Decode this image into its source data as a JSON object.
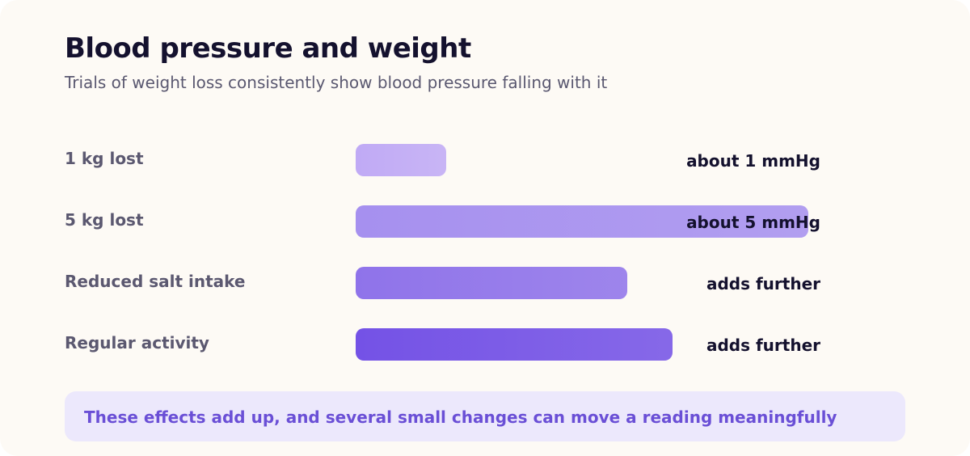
{
  "chart_data": {
    "type": "bar",
    "orientation": "horizontal",
    "title": "Blood pressure and weight",
    "subtitle": "Trials of weight loss consistently show blood pressure falling with it",
    "categories": [
      "1 kg lost",
      "5 kg lost",
      "Reduced salt intake",
      "Regular activity"
    ],
    "values": [
      1,
      5,
      3,
      3.5
    ],
    "value_labels": [
      "about 1 mmHg",
      "about 5 mmHg",
      "adds further",
      "adds further"
    ],
    "xlim": [
      0,
      5
    ],
    "grid": false,
    "bar_colors": [
      "#c0aaf5",
      "#a690ef",
      "#8f73ea",
      "#7452e6"
    ]
  },
  "note": {
    "text": "These effects add up, and several small changes can move a reading meaningfully"
  },
  "colors": {
    "background": "#fdfaf5",
    "note_background": "#ece8fc",
    "note_text": "#6a4fd6",
    "title": "#14112e"
  }
}
